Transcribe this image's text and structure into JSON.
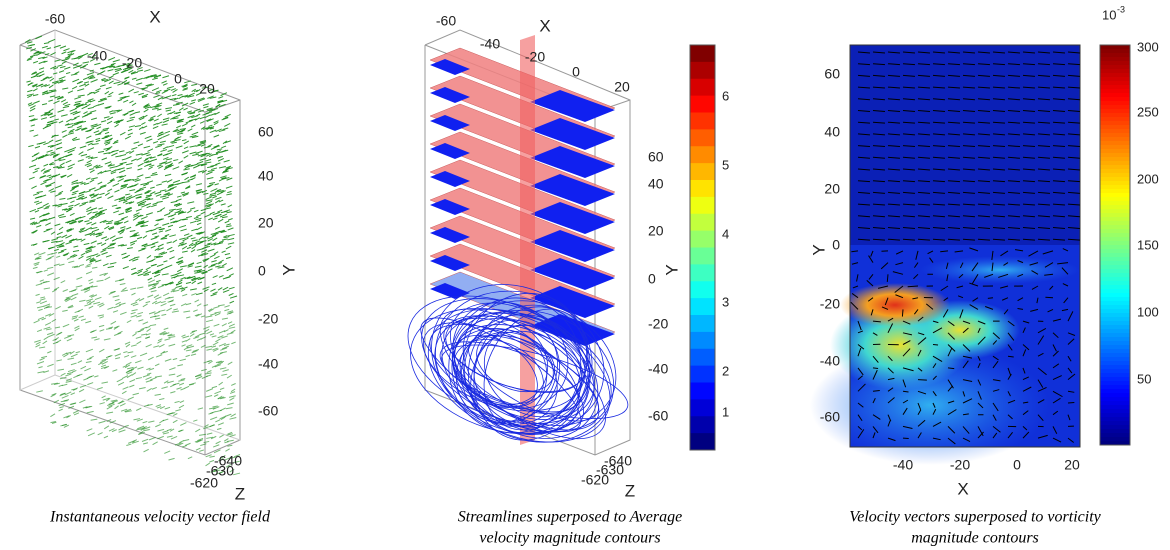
{
  "panels": [
    {
      "x_label": "X",
      "y_label": "Y",
      "z_label": "Z",
      "x_ticks": [
        "-60",
        "-40",
        "-20",
        "0",
        "20"
      ],
      "y_ticks": [
        "60",
        "40",
        "20",
        "0",
        "-20",
        "-40",
        "-60"
      ],
      "z_ticks": [
        "-640",
        "-630",
        "-620"
      ],
      "caption": [
        "Instantaneous velocity vector field"
      ]
    },
    {
      "x_label": "X",
      "y_label": "Y",
      "z_label": "Z",
      "x_ticks": [
        "-60",
        "-40",
        "-20",
        "0",
        "20"
      ],
      "y_ticks": [
        "60",
        "40",
        "20",
        "0",
        "-20",
        "-40",
        "-60"
      ],
      "z_ticks": [
        "-640",
        "-630",
        "-620"
      ],
      "colorbar_ticks": [
        "6",
        "5",
        "4",
        "3",
        "2",
        "1"
      ],
      "caption": [
        "Streamlines superposed to Average",
        "velocity magnitude contours"
      ]
    },
    {
      "x_label": "X",
      "y_label": "Y",
      "x_ticks": [
        "-40",
        "-20",
        "0",
        "20"
      ],
      "y_ticks": [
        "60",
        "40",
        "20",
        "0",
        "-20",
        "-40",
        "-60"
      ],
      "colorbar_scale": {
        "base": "10",
        "exponent": "-3"
      },
      "colorbar_ticks": [
        "300",
        "250",
        "200",
        "150",
        "100",
        "50"
      ],
      "caption": [
        "Velocity vectors superposed to vorticity",
        "magnitude contours"
      ]
    }
  ]
}
